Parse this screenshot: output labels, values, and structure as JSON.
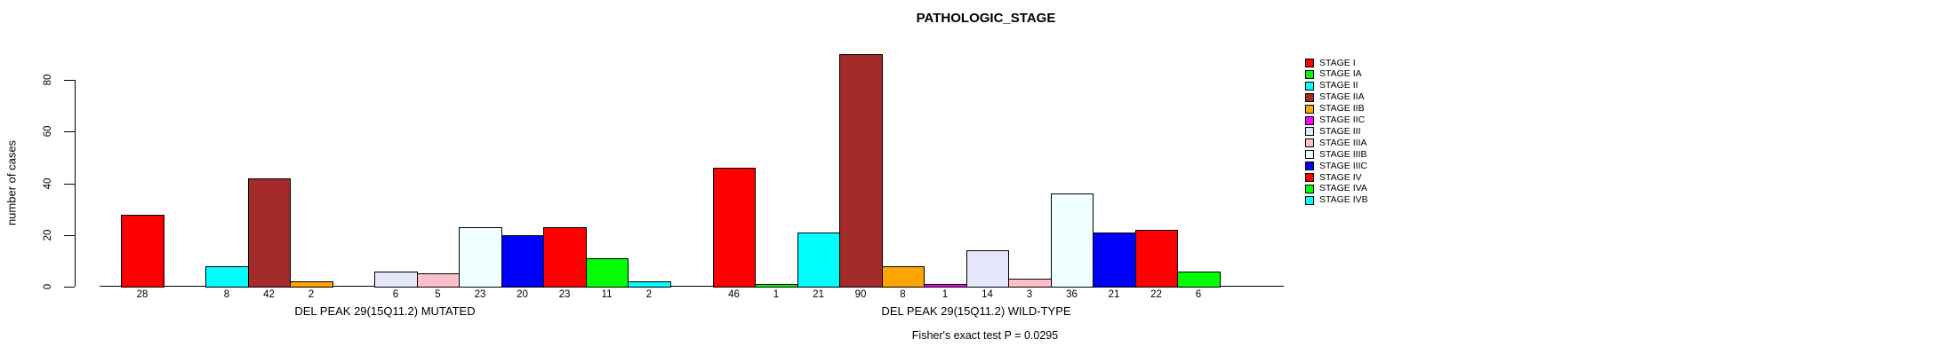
{
  "figure": {
    "title": "PATHOLOGIC_STAGE",
    "annotation": "Fisher's exact test P = 0.0295",
    "ylabel": "number of cases"
  },
  "chart_data": {
    "type": "bar",
    "title": "PATHOLOGIC_STAGE",
    "ylabel": "number of cases",
    "ylim": [
      0,
      93
    ],
    "yticks": [
      0,
      20,
      40,
      60,
      80
    ],
    "grid": false,
    "legend_position": "right-outside",
    "categories": [
      "STAGE I",
      "STAGE IA",
      "STAGE II",
      "STAGE IIA",
      "STAGE IIB",
      "STAGE IIC",
      "STAGE III",
      "STAGE IIIA",
      "STAGE IIIB",
      "STAGE IIIC",
      "STAGE IV",
      "STAGE IVA",
      "STAGE IVB"
    ],
    "palette": [
      "#FF0000",
      "#00FF00",
      "#00FFFF",
      "#A52A2A",
      "#FFA500",
      "#FF00FF",
      "#E6E6FA",
      "#FFC0CB",
      "#F0FFFF",
      "#0000FF",
      "#FF0000",
      "#00FF00",
      "#00FFFF"
    ],
    "series": [
      {
        "name": "DEL PEAK 29(15Q11.2) MUTATED",
        "values": [
          28,
          0,
          8,
          42,
          2,
          0,
          6,
          5,
          23,
          20,
          23,
          11,
          2
        ]
      },
      {
        "name": "DEL PEAK 29(15Q11.2) WILD-TYPE",
        "values": [
          46,
          1,
          21,
          90,
          8,
          1,
          14,
          3,
          36,
          21,
          22,
          6,
          0
        ]
      }
    ],
    "bar_value_labels": [
      [
        "28",
        "",
        "8",
        "42",
        "2",
        "",
        "6",
        "5",
        "23",
        "20",
        "23",
        "11",
        "2"
      ],
      [
        "46",
        "1",
        "21",
        "90",
        "8",
        "1",
        "14",
        "3",
        "36",
        "21",
        "22",
        "6",
        ""
      ]
    ],
    "annotation": "Fisher's exact test P = 0.0295"
  },
  "legend": {
    "entries": [
      {
        "label": "STAGE I",
        "color": "#FF0000"
      },
      {
        "label": "STAGE IA",
        "color": "#00FF00"
      },
      {
        "label": "STAGE II",
        "color": "#00FFFF"
      },
      {
        "label": "STAGE IIA",
        "color": "#A52A2A"
      },
      {
        "label": "STAGE IIB",
        "color": "#FFA500"
      },
      {
        "label": "STAGE IIC",
        "color": "#FF00FF"
      },
      {
        "label": "STAGE III",
        "color": "#E6E6FA"
      },
      {
        "label": "STAGE IIIA",
        "color": "#FFC0CB"
      },
      {
        "label": "STAGE IIIB",
        "color": "#F0FFFF"
      },
      {
        "label": "STAGE IIIC",
        "color": "#0000FF"
      },
      {
        "label": "STAGE IV",
        "color": "#FF0000"
      },
      {
        "label": "STAGE IVA",
        "color": "#00FF00"
      },
      {
        "label": "STAGE IVB",
        "color": "#00FFFF"
      }
    ]
  }
}
